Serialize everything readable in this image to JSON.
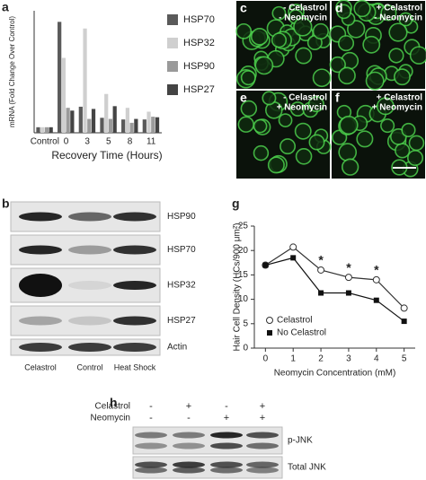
{
  "chart_data": [
    {
      "type": "bar",
      "y_label": "mRNA (Fold Change Over Control)",
      "x_label": "Recovery Time (Hours)",
      "categories": [
        "Control",
        "0",
        "3",
        "5",
        "8",
        "11"
      ],
      "ylim": [
        0,
        22
      ],
      "series": [
        {
          "name": "HSP70",
          "color": "#5a5a5a",
          "values": [
            1,
            20,
            4.7,
            2.7,
            2.4,
            2.4
          ]
        },
        {
          "name": "HSP32",
          "color": "#cfcfcf",
          "values": [
            1,
            13.5,
            18.8,
            7,
            4.5,
            3.8
          ]
        },
        {
          "name": "HSP90",
          "color": "#9a9a9a",
          "values": [
            1,
            4.5,
            2.5,
            2.5,
            1.8,
            2.9
          ]
        },
        {
          "name": "HSP27",
          "color": "#444444",
          "values": [
            1,
            4,
            4.3,
            4.8,
            2.5,
            2.8
          ]
        }
      ]
    },
    {
      "type": "line",
      "y_label": "Hair Cell Density (HCs/900 μm²)",
      "x_label": "Neomycin Concentration (mM)",
      "x": [
        0,
        1,
        2,
        3,
        4,
        5
      ],
      "xlim": [
        -0.4,
        5.4
      ],
      "xticks": [
        0,
        1,
        2,
        3,
        4,
        5
      ],
      "ylim": [
        0,
        25
      ],
      "yticks": [
        0,
        5,
        10,
        15,
        20,
        25
      ],
      "series": [
        {
          "name": "Celastrol",
          "color": "#333333",
          "marker": "open-circle",
          "values": [
            17,
            20.7,
            16,
            14.5,
            14,
            8.2
          ]
        },
        {
          "name": "No Celastrol",
          "color": "#111111",
          "marker": "filled-square",
          "values": [
            17,
            18.5,
            11.3,
            11.3,
            9.8,
            5.5
          ]
        }
      ],
      "annotations": [
        {
          "x": 2,
          "text": "*"
        },
        {
          "x": 3,
          "text": "*"
        },
        {
          "x": 4,
          "text": "*"
        }
      ]
    }
  ],
  "panel_labels": {
    "a": "a",
    "b": "b",
    "g": "g",
    "h": "h"
  },
  "micrographs": [
    {
      "label": "c",
      "lines": [
        "- Celastrol",
        "- Neomycin"
      ]
    },
    {
      "label": "d",
      "lines": [
        "+ Celastrol",
        "- Neomycin"
      ]
    },
    {
      "label": "e",
      "lines": [
        "- Celastrol",
        "+ Neomycin"
      ]
    },
    {
      "label": "f",
      "lines": [
        "+ Celastrol",
        "+ Neomycin"
      ]
    }
  ],
  "blot_b": {
    "rows": [
      "HSP90",
      "HSP70",
      "HSP32",
      "HSP27",
      "Actin"
    ],
    "lanes": [
      "Celastrol",
      "Control",
      "Heat Shock"
    ]
  },
  "blot_h": {
    "conditions": [
      {
        "name": "Celastrol",
        "signs": [
          "-",
          "+",
          "-",
          "+"
        ]
      },
      {
        "name": "Neomycin",
        "signs": [
          "-",
          "-",
          "+",
          "+"
        ]
      }
    ],
    "rows": [
      "p-JNK",
      "Total JNK"
    ]
  }
}
